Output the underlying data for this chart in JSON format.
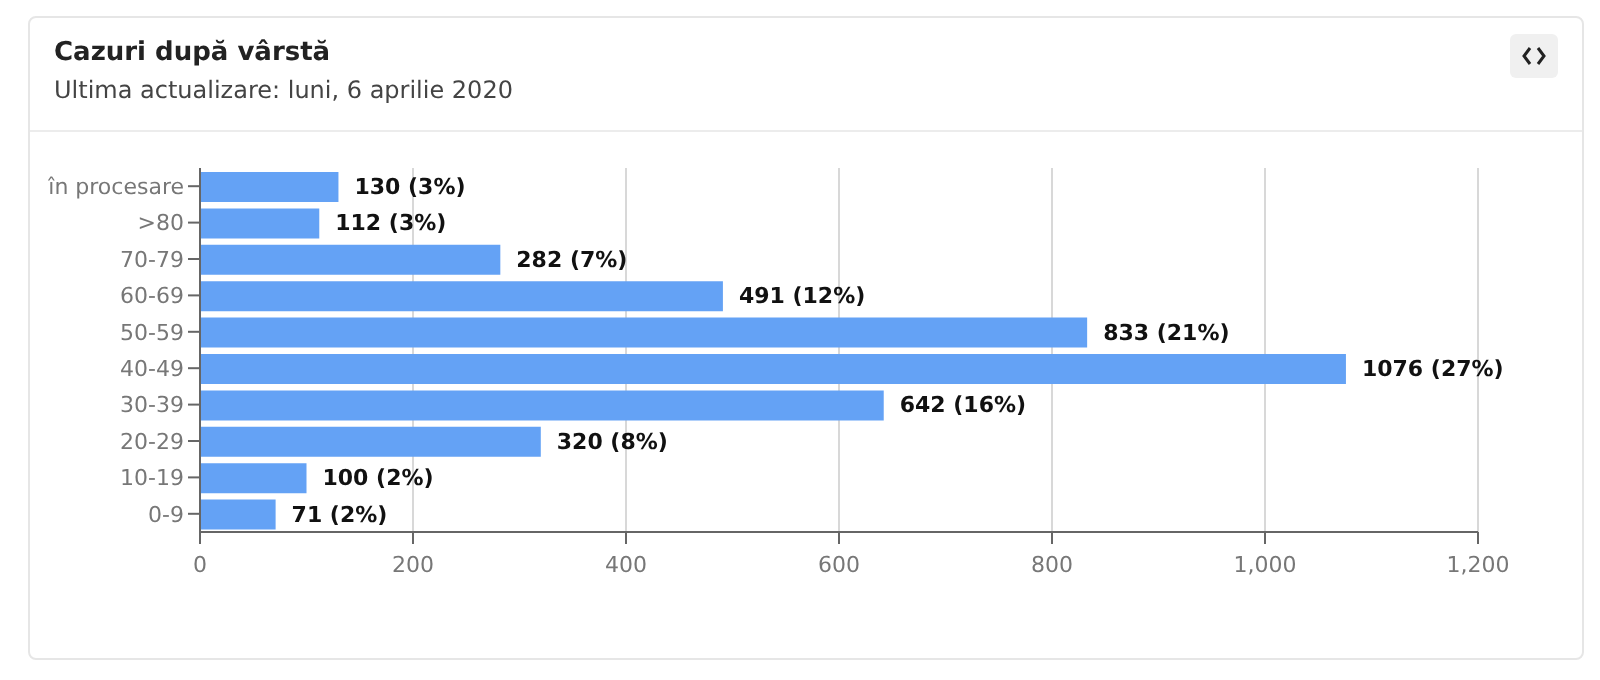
{
  "chart_data": {
    "type": "bar",
    "orientation": "horizontal",
    "title": "Cazuri după vârstă",
    "subtitle": "Ultima actualizare: luni, 6 aprilie 2020",
    "categories": [
      "în procesare",
      ">80",
      "70-79",
      "60-69",
      "50-59",
      "40-49",
      "30-39",
      "20-29",
      "10-19",
      "0-9"
    ],
    "values": [
      130,
      112,
      282,
      491,
      833,
      1076,
      642,
      320,
      100,
      71
    ],
    "value_labels": [
      "130 (3%)",
      "112 (3%)",
      "282 (7%)",
      "491 (12%)",
      "833 (21%)",
      "1076 (27%)",
      "642 (16%)",
      "320 (8%)",
      "100 (2%)",
      "71 (2%)"
    ],
    "color": "#64a2f5",
    "xlim": [
      0,
      1200
    ],
    "xticks": [
      0,
      200,
      400,
      600,
      800,
      {
        "value": 1000,
        "label": "1,000"
      },
      {
        "value": 1200,
        "label": "1,200"
      }
    ],
    "grid": "x"
  }
}
